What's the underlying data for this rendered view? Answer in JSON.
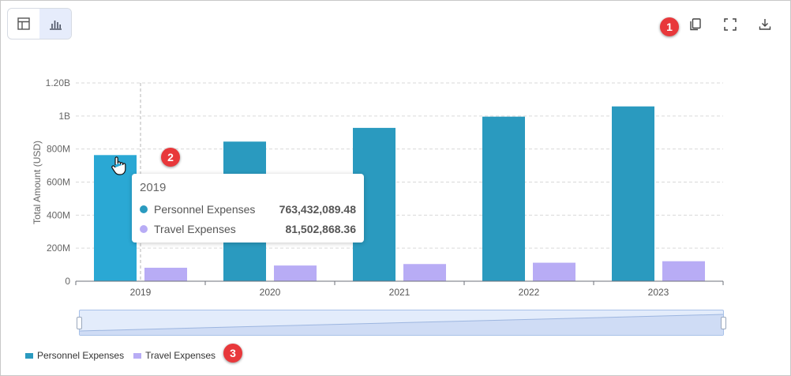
{
  "toolbar": {
    "view_toggle": [
      {
        "name": "table-view-button",
        "icon": "table-icon",
        "active": false
      },
      {
        "name": "chart-view-button",
        "icon": "bar-chart-icon",
        "active": true
      }
    ],
    "actions": [
      {
        "name": "copy-button",
        "icon": "copy-icon"
      },
      {
        "name": "fullscreen-button",
        "icon": "fullscreen-icon"
      },
      {
        "name": "download-button",
        "icon": "download-icon"
      }
    ]
  },
  "markers": [
    "1",
    "2",
    "3"
  ],
  "colors": {
    "personnel": "#2a9abf",
    "personnel_hover": "#2aa8d4",
    "travel": "#b8acf5",
    "accent": "#e8383b"
  },
  "chart_data": {
    "type": "bar",
    "categories": [
      "2019",
      "2020",
      "2021",
      "2022",
      "2023"
    ],
    "series": [
      {
        "name": "Personnel Expenses",
        "values": [
          763432089.48,
          845000000,
          928000000,
          996000000,
          1058000000
        ]
      },
      {
        "name": "Travel Expenses",
        "values": [
          81502868.36,
          95000000,
          104000000,
          112000000,
          121000000
        ]
      }
    ],
    "ylabel": "Total Amount (USD)",
    "ylim": [
      0,
      1200000000
    ],
    "yticks": [
      {
        "value": 0,
        "label": "0"
      },
      {
        "value": 200000000,
        "label": "200M"
      },
      {
        "value": 400000000,
        "label": "400M"
      },
      {
        "value": 600000000,
        "label": "600M"
      },
      {
        "value": 800000000,
        "label": "800M"
      },
      {
        "value": 1000000000,
        "label": "1B"
      },
      {
        "value": 1200000000,
        "label": "1.20B"
      }
    ],
    "grid": true,
    "legend": "bottom-left",
    "hovered_category": "2019"
  },
  "tooltip": {
    "title": "2019",
    "rows": [
      {
        "name": "Personnel Expenses",
        "value": "763,432,089.48"
      },
      {
        "name": "Travel Expenses",
        "value": "81,502,868.36"
      }
    ]
  },
  "legend": [
    {
      "label": "Personnel Expenses"
    },
    {
      "label": "Travel Expenses"
    }
  ]
}
